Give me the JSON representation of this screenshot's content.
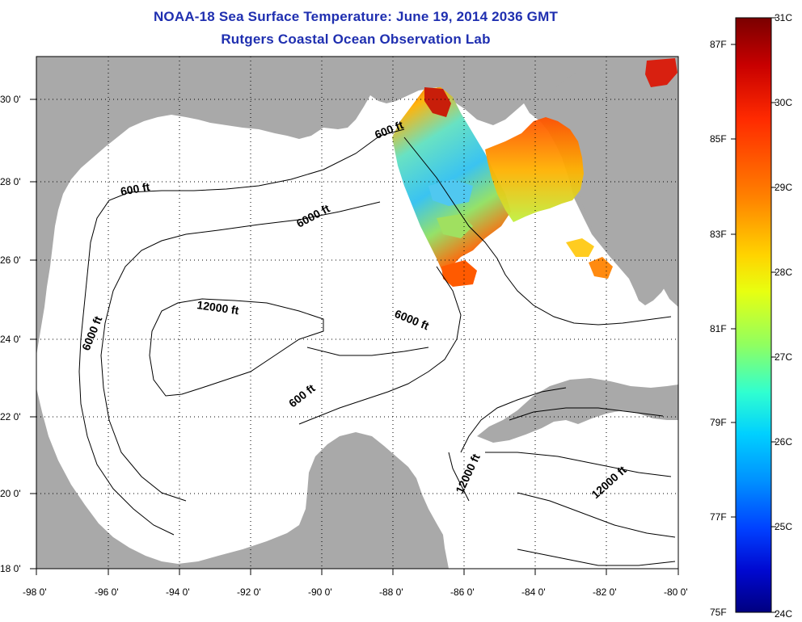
{
  "title_line1": "NOAA-18 Sea Surface Temperature:  June 19, 2014 2036 GMT",
  "title_line2": "Rutgers Coastal Ocean Observation Lab",
  "axes": {
    "lon_labels": [
      "-98 0'",
      "-96 0'",
      "-94 0'",
      "-92 0'",
      "-90 0'",
      "-88 0'",
      "-86 0'",
      "-84 0'",
      "-82 0'",
      "-80 0'"
    ],
    "lat_labels": [
      "30 0'",
      "28 0'",
      "26 0'",
      "24 0'",
      "22 0'",
      "20 0'",
      "18 0'"
    ],
    "lon_range": [
      -98,
      -80
    ],
    "lat_range": [
      18,
      31
    ]
  },
  "contour_labels": [
    "600 ft",
    "600 ft",
    "6000 ft",
    "12000 ft",
    "6000 ft",
    "6000 ft",
    "600 ft",
    "12000 ft",
    "12000 ft"
  ],
  "colorbar": {
    "celsius": [
      "31C",
      "30C",
      "29C",
      "28C",
      "27C",
      "26C",
      "25C",
      "24C"
    ],
    "fahrenheit": [
      "87F",
      "85F",
      "83F",
      "81F",
      "79F",
      "77F",
      "75F"
    ],
    "stops": [
      "#7a0000",
      "#c80000",
      "#ff2a00",
      "#ff8000",
      "#ffd400",
      "#e8ff10",
      "#90ff60",
      "#30ffd0",
      "#00d0ff",
      "#0090ff",
      "#0040ff",
      "#0008d0",
      "#000080"
    ]
  },
  "colors": {
    "land": "#a9a9a9",
    "ocean": "#ffffff",
    "title": "#1f2fb0"
  }
}
